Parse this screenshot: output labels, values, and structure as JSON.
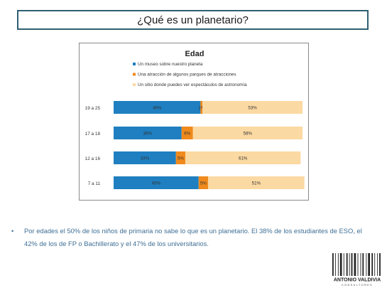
{
  "slide": {
    "title": "¿Qué es un planetario?",
    "bullet": "Por edades el 50% de los niños de primaria no sabe lo que es un planetario. El 38% de los estudiantes de ESO, el 42% de los de FP o Bachillerato y el 47% de los universitarios."
  },
  "logo": {
    "name": "ANTONIO VALDIVIA",
    "subtitle": "CONSULTORES"
  },
  "chart_data": {
    "type": "bar",
    "orientation": "horizontal",
    "stacked": "percent",
    "title": "Edad",
    "categories": [
      "19 a 25",
      "17 a 18",
      "12 a 16",
      "7 a 11"
    ],
    "series": [
      {
        "name": "Un museo sobre nuestro planeta",
        "values": [
          46,
          36,
          33,
          45
        ],
        "labels": [
          "46%",
          "36%",
          "33%",
          "45%"
        ],
        "color": "#1f7fc0"
      },
      {
        "name": "Una atracción de algunos parques de atracciones",
        "values": [
          1,
          6,
          5,
          5
        ],
        "labels": [
          "1%",
          "6%",
          "5%",
          "5%"
        ],
        "color": "#f08a1c"
      },
      {
        "name": "Un sitio donde puedes ver espectáculos de astronomía",
        "values": [
          53,
          58,
          61,
          51
        ],
        "labels": [
          "53%",
          "58%",
          "61%",
          "51%"
        ],
        "color": "#fbd9a2"
      }
    ],
    "xlim": [
      0,
      100
    ],
    "legend_position": "top",
    "grid": false
  }
}
